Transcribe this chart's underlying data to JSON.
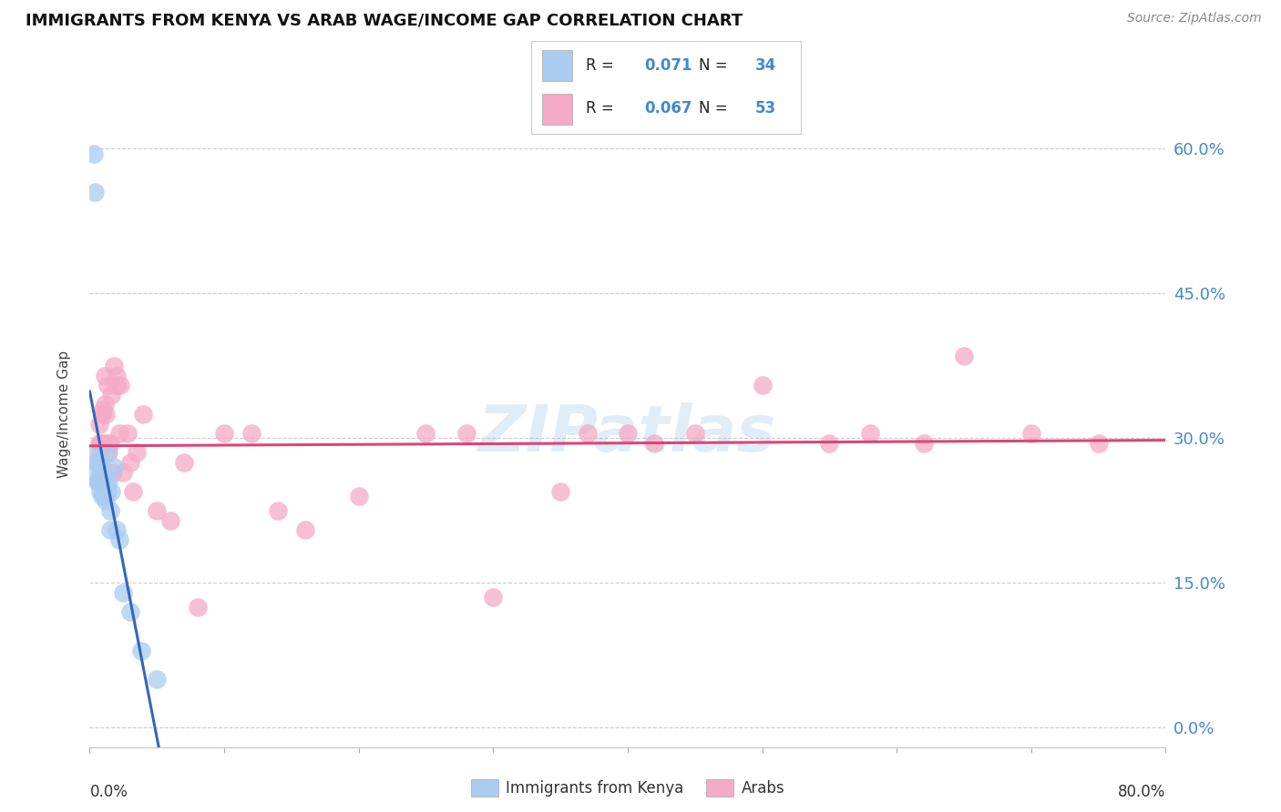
{
  "title": "IMMIGRANTS FROM KENYA VS ARAB WAGE/INCOME GAP CORRELATION CHART",
  "source": "Source: ZipAtlas.com",
  "ylabel": "Wage/Income Gap",
  "watermark": "ZIPatlas",
  "legend_1_r": "0.071",
  "legend_1_n": "34",
  "legend_2_r": "0.067",
  "legend_2_n": "53",
  "kenya_color": "#aaccf0",
  "arab_color": "#f5aac5",
  "kenya_line_color": "#3366bb",
  "arab_line_color": "#dd4477",
  "right_axis_color": "#4488cc",
  "label_color": "#4488cc",
  "ytick_labels": [
    "0.0%",
    "15.0%",
    "30.0%",
    "45.0%",
    "60.0%"
  ],
  "ytick_values": [
    0.0,
    0.15,
    0.3,
    0.45,
    0.6
  ],
  "xlim": [
    0.0,
    0.8
  ],
  "ylim": [
    -0.02,
    0.67
  ],
  "kenya_x": [
    0.003,
    0.004,
    0.005,
    0.005,
    0.006,
    0.006,
    0.007,
    0.007,
    0.008,
    0.008,
    0.008,
    0.009,
    0.009,
    0.009,
    0.01,
    0.01,
    0.01,
    0.011,
    0.011,
    0.012,
    0.012,
    0.013,
    0.013,
    0.014,
    0.015,
    0.015,
    0.016,
    0.018,
    0.02,
    0.022,
    0.025,
    0.03,
    0.038,
    0.05
  ],
  "kenya_y": [
    0.595,
    0.555,
    0.285,
    0.265,
    0.275,
    0.255,
    0.275,
    0.255,
    0.265,
    0.255,
    0.245,
    0.27,
    0.25,
    0.24,
    0.265,
    0.255,
    0.245,
    0.26,
    0.24,
    0.255,
    0.235,
    0.285,
    0.245,
    0.255,
    0.225,
    0.205,
    0.245,
    0.27,
    0.205,
    0.195,
    0.14,
    0.12,
    0.08,
    0.05
  ],
  "arab_x": [
    0.005,
    0.006,
    0.007,
    0.007,
    0.008,
    0.008,
    0.009,
    0.01,
    0.01,
    0.011,
    0.011,
    0.012,
    0.013,
    0.013,
    0.014,
    0.015,
    0.016,
    0.017,
    0.018,
    0.02,
    0.02,
    0.022,
    0.023,
    0.025,
    0.028,
    0.03,
    0.032,
    0.035,
    0.04,
    0.05,
    0.06,
    0.07,
    0.08,
    0.1,
    0.12,
    0.14,
    0.16,
    0.2,
    0.25,
    0.28,
    0.3,
    0.35,
    0.37,
    0.4,
    0.42,
    0.45,
    0.5,
    0.55,
    0.58,
    0.62,
    0.65,
    0.7,
    0.75
  ],
  "arab_y": [
    0.275,
    0.255,
    0.295,
    0.315,
    0.285,
    0.295,
    0.325,
    0.33,
    0.295,
    0.335,
    0.365,
    0.325,
    0.355,
    0.295,
    0.285,
    0.295,
    0.345,
    0.265,
    0.375,
    0.365,
    0.355,
    0.305,
    0.355,
    0.265,
    0.305,
    0.275,
    0.245,
    0.285,
    0.325,
    0.225,
    0.215,
    0.275,
    0.125,
    0.305,
    0.305,
    0.225,
    0.205,
    0.24,
    0.305,
    0.305,
    0.135,
    0.245,
    0.305,
    0.305,
    0.295,
    0.305,
    0.355,
    0.295,
    0.305,
    0.295,
    0.385,
    0.305,
    0.295
  ]
}
